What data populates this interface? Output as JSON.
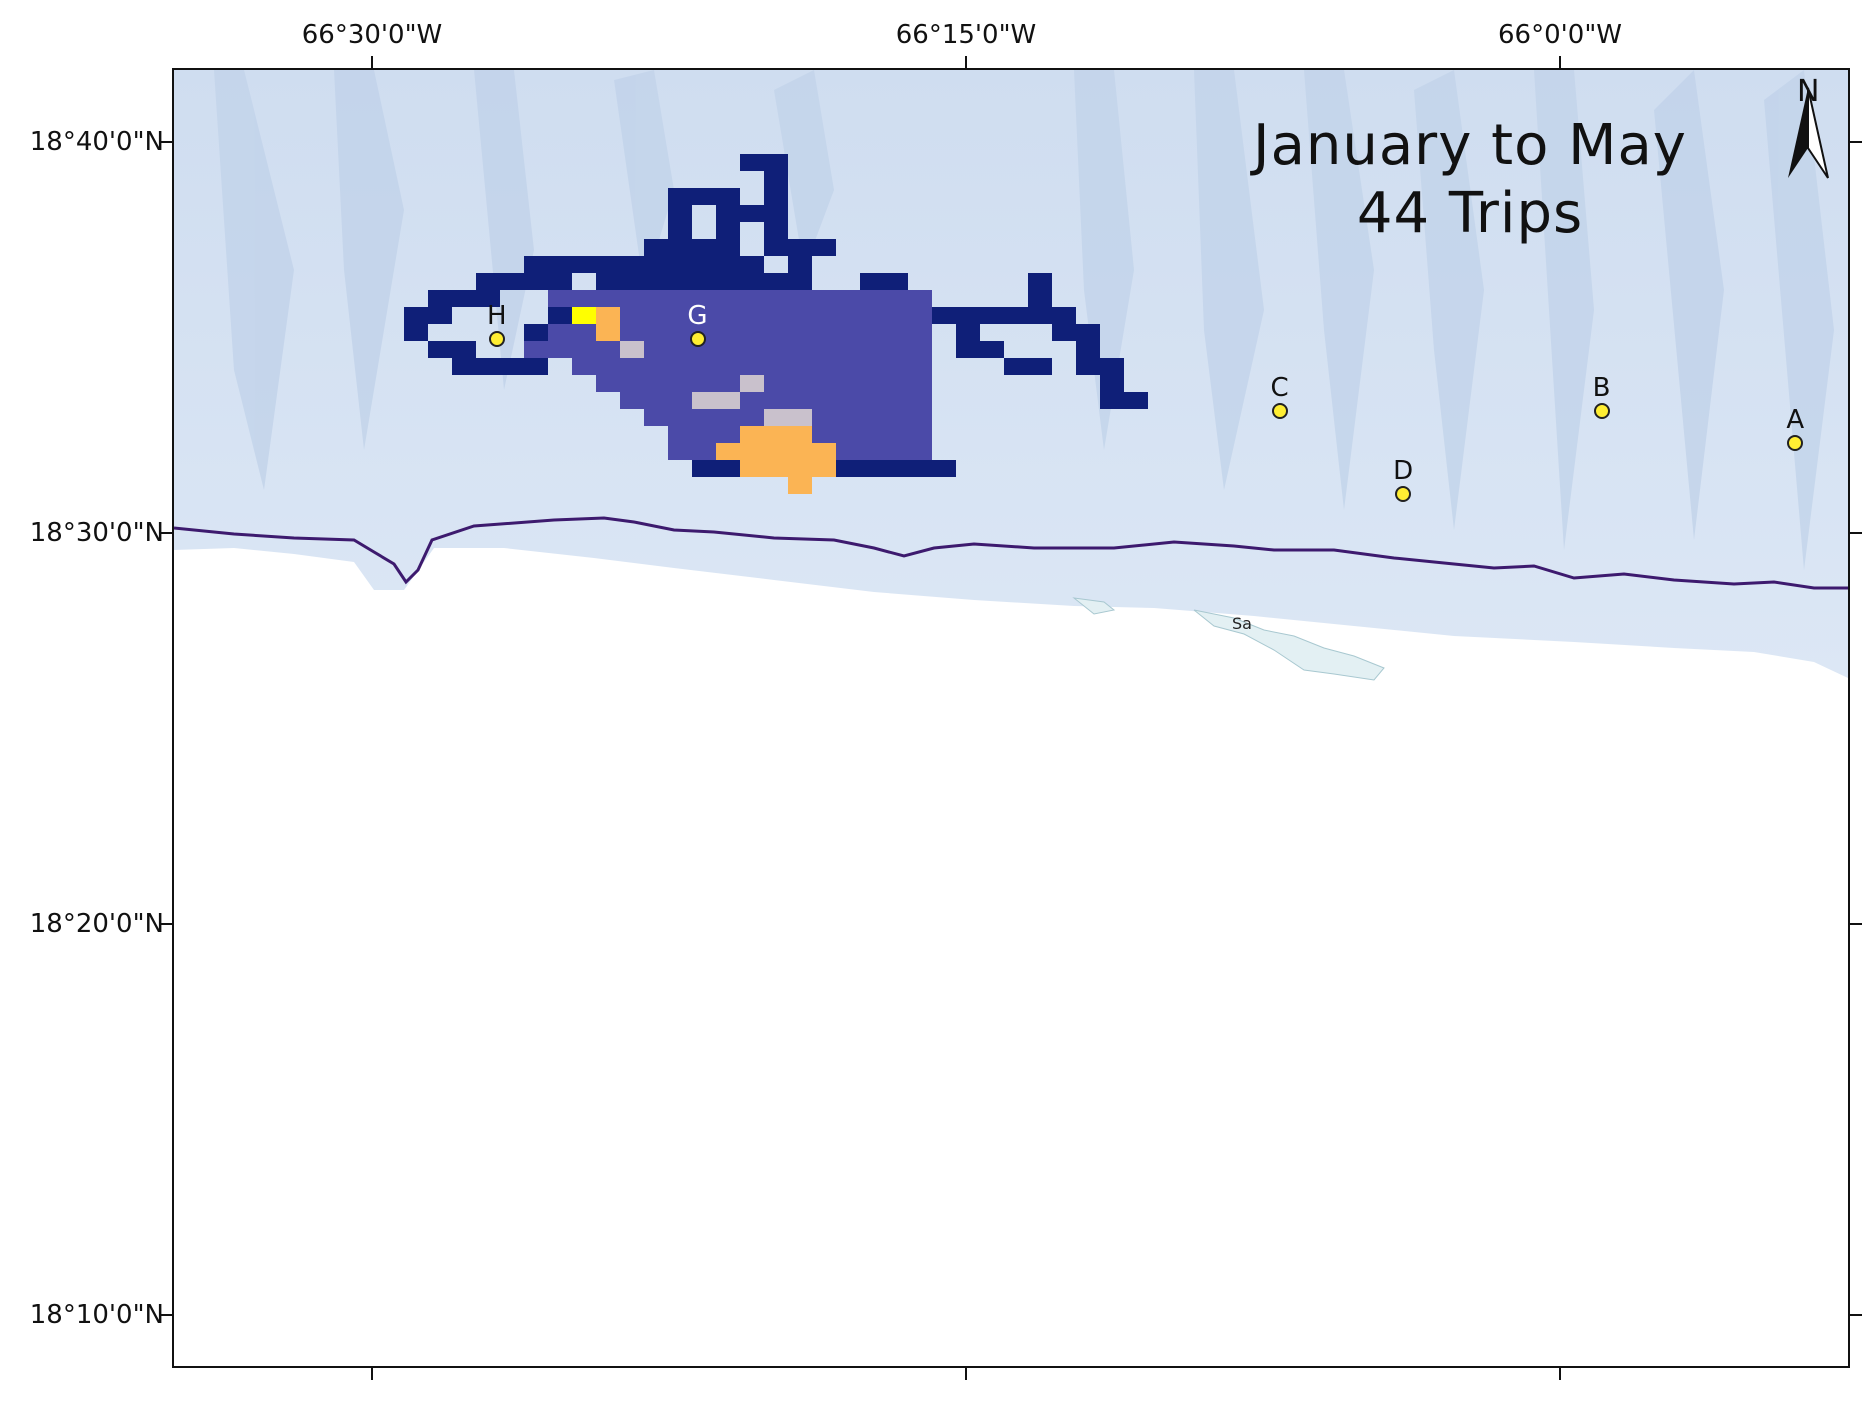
{
  "title": {
    "line1": "January to May",
    "line2": "44 Trips"
  },
  "north_arrow": {
    "label": "N",
    "icon": "north-arrow-icon"
  },
  "axes": {
    "longitude_ticks": [
      {
        "label": "66°30'0\"W",
        "lon": -66.5
      },
      {
        "label": "66°15'0\"W",
        "lon": -66.25
      },
      {
        "label": "66°0'0\"W",
        "lon": -66.0
      }
    ],
    "latitude_ticks": [
      {
        "label": "18°40'0\"N",
        "lat": 18.6667
      },
      {
        "label": "18°30'0\"N",
        "lat": 18.5
      },
      {
        "label": "18°20'0\"N",
        "lat": 18.3333
      },
      {
        "label": "18°10'0\"N",
        "lat": 18.1667
      }
    ]
  },
  "stations": [
    {
      "id": "A",
      "lon": -65.901,
      "lat": 18.5385,
      "label_color": "dark"
    },
    {
      "id": "B",
      "lon": -65.9825,
      "lat": 18.552,
      "label_color": "dark"
    },
    {
      "id": "C",
      "lon": -66.118,
      "lat": 18.552,
      "label_color": "dark"
    },
    {
      "id": "D",
      "lon": -66.066,
      "lat": 18.5165,
      "label_color": "dark"
    },
    {
      "id": "G",
      "lon": -66.363,
      "lat": 18.5825,
      "label_color": "light"
    },
    {
      "id": "H",
      "lon": -66.4475,
      "lat": 18.5825,
      "label_color": "dark"
    }
  ],
  "map_label": "Sa",
  "colors": {
    "ocean": "#d4e2f3",
    "ridge": "#bfd1ea",
    "land": "#ffffff",
    "coastline": "#3d1a6e",
    "heat_low": "#0f1f78",
    "heat_mid": "#4b4aa8",
    "heat_grey": "#c9c1cc",
    "heat_hot": "#fbb454",
    "heat_max": "#ffff00"
  }
}
